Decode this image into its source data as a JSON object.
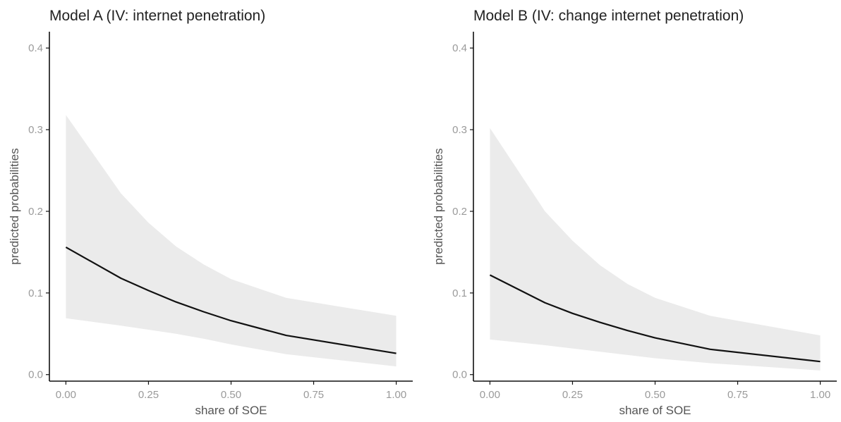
{
  "colors": {
    "ribbon": "#ebebeb",
    "line": "#111111"
  },
  "chart_data": [
    {
      "type": "line",
      "title": "Model A (IV: internet penetration)",
      "xlabel": "share of SOE",
      "ylabel": "predicted probabilities",
      "xlim": [
        -0.05,
        1.05
      ],
      "ylim": [
        -0.008,
        0.42
      ],
      "xticks": [
        0,
        0.25,
        0.5,
        0.75,
        1
      ],
      "xtick_labels": [
        "0.00",
        "0.25",
        "0.50",
        "0.75",
        "1.00"
      ],
      "yticks": [
        0,
        0.1,
        0.2,
        0.3,
        0.4
      ],
      "ytick_labels": [
        "0.0",
        "0.1",
        "0.2",
        "0.3",
        "0.4"
      ],
      "grid": false,
      "series": [
        {
          "x": [
            0,
            0.1667,
            0.25,
            0.3333,
            0.4167,
            0.5,
            0.6667,
            1.0
          ],
          "y": [
            0.156,
            0.118,
            0.103,
            0.089,
            0.077,
            0.066,
            0.048,
            0.026
          ],
          "lower": [
            0.069,
            0.06,
            0.055,
            0.05,
            0.044,
            0.037,
            0.025,
            0.01
          ],
          "upper": [
            0.318,
            0.222,
            0.186,
            0.157,
            0.135,
            0.117,
            0.094,
            0.072
          ]
        }
      ]
    },
    {
      "type": "line",
      "title": "Model B (IV: change internet penetration)",
      "xlabel": "share of SOE",
      "ylabel": "predicted probabilities",
      "xlim": [
        -0.05,
        1.05
      ],
      "ylim": [
        -0.008,
        0.42
      ],
      "xticks": [
        0,
        0.25,
        0.5,
        0.75,
        1
      ],
      "xtick_labels": [
        "0.00",
        "0.25",
        "0.50",
        "0.75",
        "1.00"
      ],
      "yticks": [
        0,
        0.1,
        0.2,
        0.3,
        0.4
      ],
      "ytick_labels": [
        "0.0",
        "0.1",
        "0.2",
        "0.3",
        "0.4"
      ],
      "grid": false,
      "series": [
        {
          "x": [
            0,
            0.1667,
            0.25,
            0.3333,
            0.4167,
            0.5,
            0.6667,
            1.0
          ],
          "y": [
            0.122,
            0.088,
            0.075,
            0.064,
            0.054,
            0.045,
            0.031,
            0.016
          ],
          "lower": [
            0.043,
            0.036,
            0.032,
            0.028,
            0.024,
            0.02,
            0.014,
            0.005
          ],
          "upper": [
            0.302,
            0.2,
            0.164,
            0.134,
            0.111,
            0.094,
            0.072,
            0.048
          ]
        }
      ]
    }
  ]
}
